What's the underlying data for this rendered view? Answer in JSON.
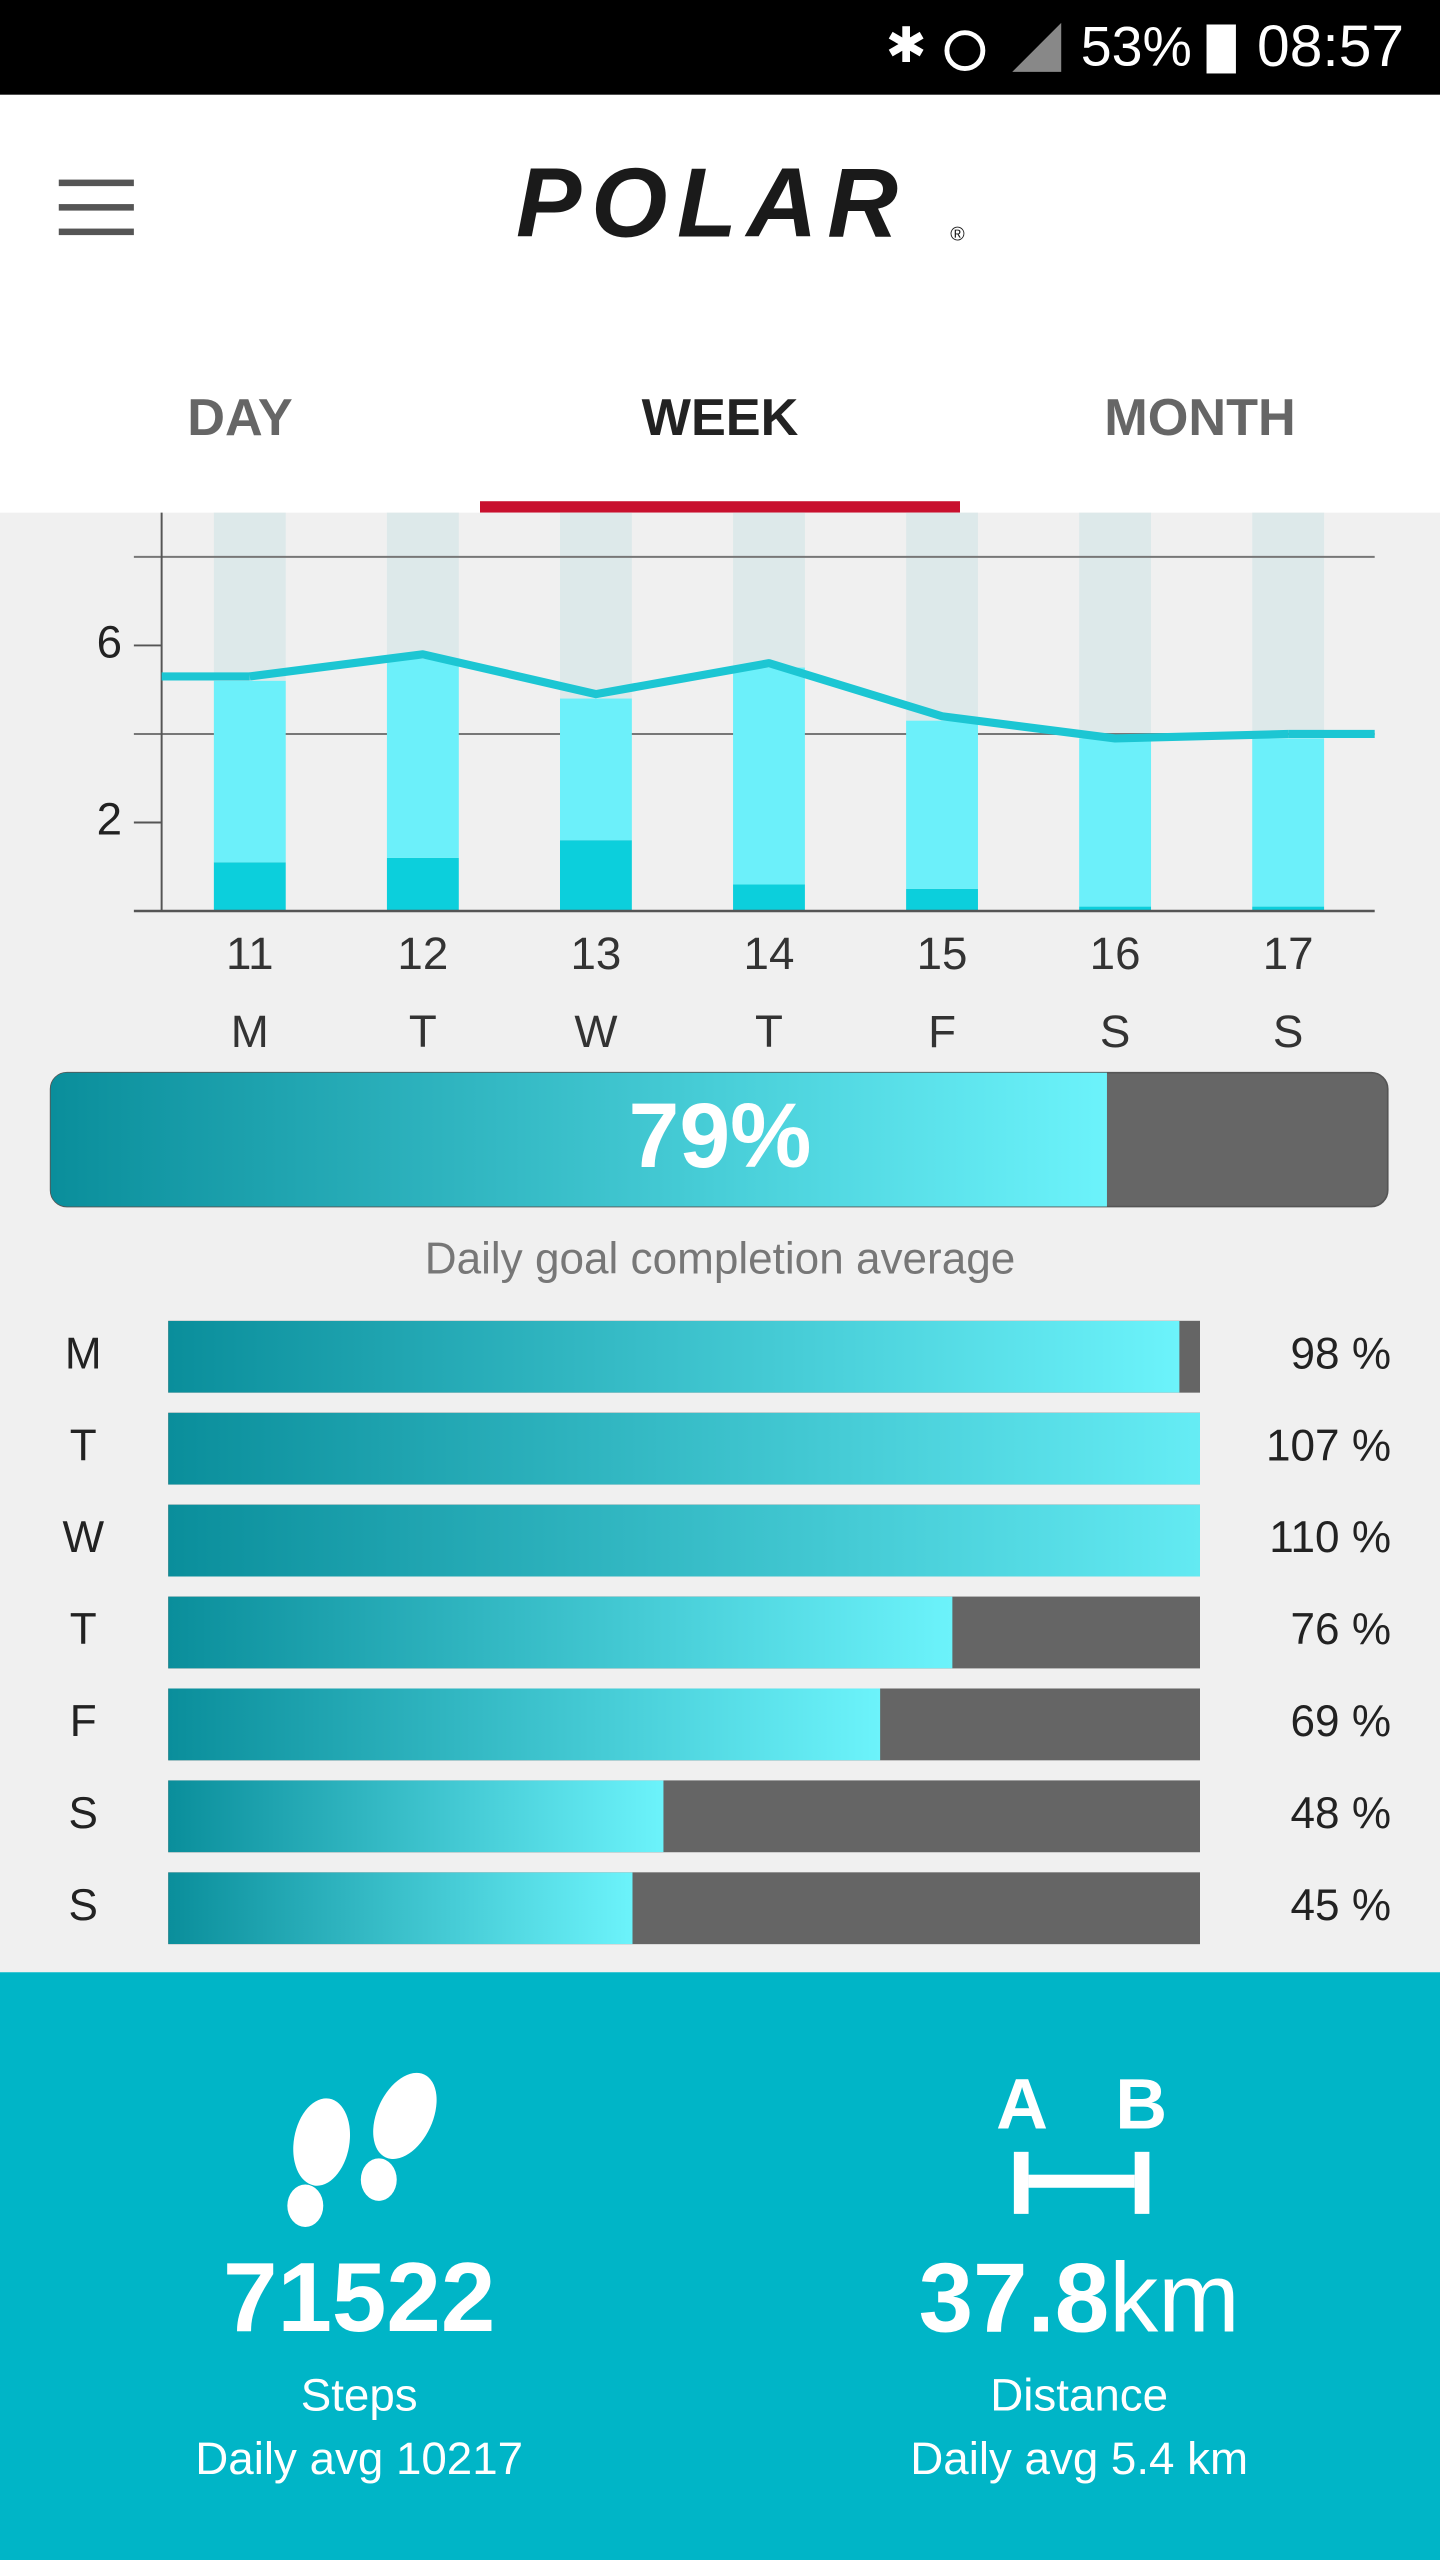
{
  "status_bar": {
    "battery": "53%",
    "time": "08:57"
  },
  "header": {
    "logo": "POLAR"
  },
  "tabs": {
    "items": [
      "DAY",
      "WEEK",
      "MONTH"
    ],
    "active": 1
  },
  "chart_data": {
    "type": "bar",
    "stacked": true,
    "categories": [
      "11",
      "12",
      "13",
      "14",
      "15",
      "16",
      "17"
    ],
    "weekdays": [
      "M",
      "T",
      "W",
      "T",
      "F",
      "S",
      "S"
    ],
    "series": [
      {
        "color": "#0ccfdc",
        "values": [
          1.1,
          1.2,
          1.6,
          0.6,
          0.5,
          0.1,
          0.1
        ]
      },
      {
        "color": "#6cf0fa",
        "values": [
          4.1,
          4.5,
          3.2,
          4.9,
          3.8,
          3.8,
          3.8
        ]
      },
      {
        "type": "line",
        "color": "#1cc6d3",
        "values": [
          5.3,
          5.8,
          4.9,
          5.6,
          4.4,
          3.9,
          4.0
        ]
      }
    ],
    "ylim": [
      0,
      9
    ],
    "yticks": [
      2,
      6
    ],
    "ygrid": [
      4,
      8
    ]
  },
  "goal": {
    "value": 79,
    "label": "79%",
    "xlim": [
      0,
      100
    ],
    "caption": "Daily goal completion average"
  },
  "daily": {
    "days": [
      "M",
      "T",
      "W",
      "T",
      "F",
      "S",
      "S"
    ],
    "values": [
      98,
      107,
      110,
      76,
      69,
      48,
      45
    ],
    "value_labels": [
      "98 %",
      "107 %",
      "110 %",
      "76 %",
      "69 %",
      "48 %",
      "45 %"
    ],
    "xlim": [
      0,
      100
    ]
  },
  "stats": [
    {
      "value": "71522",
      "label": "Steps",
      "average": "Daily avg 10217"
    },
    {
      "value": "37.8",
      "unit": "km",
      "label": "Distance",
      "average": "Daily avg 5.4 km"
    }
  ]
}
